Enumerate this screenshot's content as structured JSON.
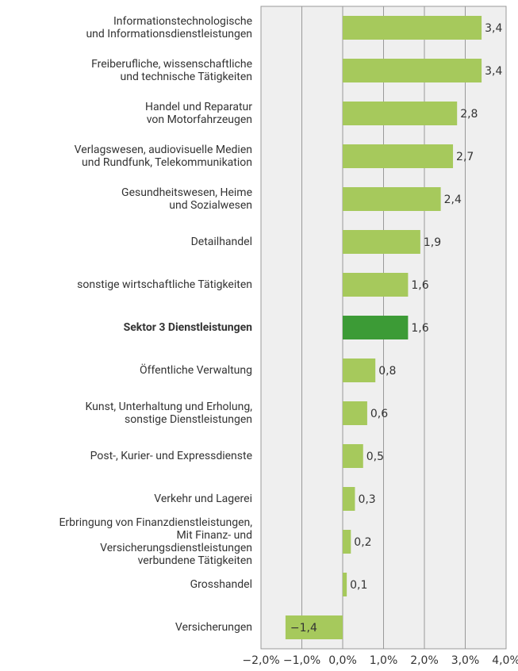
{
  "chart_data": {
    "type": "bar",
    "orientation": "horizontal",
    "categories": [
      "Informationstechnologische\nund Informationsdienstleistungen",
      "Freiberufliche, wissenschaftliche\nund technische Tätigkeiten",
      "Handel und Reparatur\nvon Motorfahrzeugen",
      "Verlagswesen, audiovisuelle Medien\nund Rundfunk, Telekommunikation",
      "Gesundheitswesen, Heime\nund Sozialwesen",
      "Detailhandel",
      "sonstige wirtschaftliche Tätigkeiten",
      "Sektor 3 Dienstleistungen",
      "Öffentliche Verwaltung",
      "Kunst, Unterhaltung und Erholung,\nsonstige Dienstleistungen",
      "Post-, Kurier- und Expressdienste",
      "Verkehr und Lagerei",
      "Erbringung von Finanzdienstleistungen,\nMit Finanz- und\nVersicherungsdienstleistungen\nverbundene Tätigkeiten",
      "Grosshandel",
      "Versicherungen"
    ],
    "values": [
      3.4,
      3.4,
      2.8,
      2.7,
      2.4,
      1.9,
      1.6,
      1.6,
      0.8,
      0.6,
      0.5,
      0.3,
      0.2,
      0.1,
      -1.4
    ],
    "value_labels": [
      "3,4",
      "3,4",
      "2,8",
      "2,7",
      "2,4",
      "1,9",
      "1,6",
      "1,6",
      "0,8",
      "0,6",
      "0,5",
      "0,3",
      "0,2",
      "0,1",
      "−1,4"
    ],
    "color": "#a6c95c",
    "highlight": 7,
    "highlight_color": "#3c9b36",
    "xlim": [
      -2,
      4
    ],
    "xticks": [
      {
        "value": -2,
        "label": "−2,0%"
      },
      {
        "value": -1,
        "label": "−1,0%"
      },
      {
        "value": 0,
        "label": "0,0%"
      },
      {
        "value": 1,
        "label": "1,0%"
      },
      {
        "value": 2,
        "label": "2,0%"
      },
      {
        "value": 3,
        "label": "3,0%"
      },
      {
        "value": 4,
        "label": "4,0%"
      }
    ],
    "grid": true
  }
}
